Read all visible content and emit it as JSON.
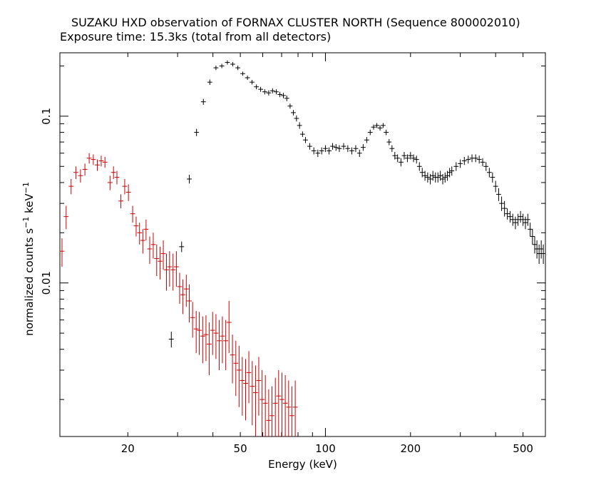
{
  "chart_data": {
    "type": "scatter",
    "title": "SUZAKU HXD observation of FORNAX CLUSTER NORTH (Sequence 800002010)",
    "subtitle": "Exposure time: 15.3ks (total from all detectors)",
    "xlabel": "Energy (keV)",
    "ylabel": "normalized counts s",
    "ylabel_sup1": "−1",
    "ylabel_mid": " keV",
    "ylabel_sup2": "−1",
    "x_scale": "log",
    "y_scale": "log",
    "xlim": [
      11.5,
      600
    ],
    "ylim": [
      0.0012,
      0.24
    ],
    "x_ticks": [
      20,
      50,
      100,
      200,
      500
    ],
    "x_tick_labels": [
      "20",
      "50",
      "100",
      "200",
      "500"
    ],
    "y_ticks": [
      0.01,
      0.1
    ],
    "y_tick_labels": [
      "0.01",
      "0.1"
    ],
    "grid": false,
    "series": [
      {
        "color": "#cc0000",
        "points": [
          [
            11.7,
            0.0155,
            0.003
          ],
          [
            12.1,
            0.025,
            0.004
          ],
          [
            12.6,
            0.038,
            0.004
          ],
          [
            13.1,
            0.046,
            0.004
          ],
          [
            13.6,
            0.044,
            0.004
          ],
          [
            14.1,
            0.048,
            0.004
          ],
          [
            14.6,
            0.056,
            0.004
          ],
          [
            15.1,
            0.055,
            0.004
          ],
          [
            15.6,
            0.051,
            0.004
          ],
          [
            16.1,
            0.054,
            0.004
          ],
          [
            16.6,
            0.053,
            0.004
          ],
          [
            17.3,
            0.04,
            0.004
          ],
          [
            17.8,
            0.046,
            0.004
          ],
          [
            18.3,
            0.043,
            0.004
          ],
          [
            18.9,
            0.031,
            0.003
          ],
          [
            19.5,
            0.038,
            0.004
          ],
          [
            20.1,
            0.035,
            0.004
          ],
          [
            20.8,
            0.026,
            0.003
          ],
          [
            21.4,
            0.022,
            0.003
          ],
          [
            22.0,
            0.02,
            0.003
          ],
          [
            22.6,
            0.018,
            0.003
          ],
          [
            23.2,
            0.021,
            0.003
          ],
          [
            23.9,
            0.016,
            0.003
          ],
          [
            24.6,
            0.017,
            0.003
          ],
          [
            25.3,
            0.014,
            0.003
          ],
          [
            26.0,
            0.0135,
            0.003
          ],
          [
            26.7,
            0.015,
            0.003
          ],
          [
            27.4,
            0.012,
            0.003
          ],
          [
            28.1,
            0.0125,
            0.003
          ],
          [
            28.9,
            0.012,
            0.003
          ],
          [
            29.7,
            0.0125,
            0.003
          ],
          [
            30.5,
            0.0095,
            0.002
          ],
          [
            31.3,
            0.0085,
            0.002
          ],
          [
            32.2,
            0.0092,
            0.002
          ],
          [
            33.0,
            0.0078,
            0.002
          ],
          [
            33.9,
            0.0062,
            0.0015
          ],
          [
            34.9,
            0.0053,
            0.0015
          ],
          [
            35.8,
            0.0052,
            0.0015
          ],
          [
            36.8,
            0.0048,
            0.0015
          ],
          [
            37.8,
            0.0049,
            0.0015
          ],
          [
            38.8,
            0.0043,
            0.0015
          ],
          [
            39.9,
            0.0052,
            0.0015
          ],
          [
            41.0,
            0.005,
            0.0015
          ],
          [
            42.1,
            0.0045,
            0.0015
          ],
          [
            43.2,
            0.0048,
            0.0015
          ],
          [
            44.4,
            0.0045,
            0.0015
          ],
          [
            45.6,
            0.0058,
            0.002
          ],
          [
            46.9,
            0.0037,
            0.0012
          ],
          [
            48.2,
            0.0033,
            0.0012
          ],
          [
            49.5,
            0.003,
            0.0012
          ],
          [
            50.8,
            0.0026,
            0.001
          ],
          [
            52.2,
            0.0025,
            0.001
          ],
          [
            53.6,
            0.0029,
            0.001
          ],
          [
            55.1,
            0.0024,
            0.001
          ],
          [
            56.6,
            0.0022,
            0.001
          ],
          [
            58.1,
            0.0026,
            0.001
          ],
          [
            59.7,
            0.002,
            0.001
          ],
          [
            61.3,
            0.0019,
            0.0009
          ],
          [
            63.0,
            0.0015,
            0.0008
          ],
          [
            64.7,
            0.0016,
            0.0008
          ],
          [
            66.5,
            0.0019,
            0.0008
          ],
          [
            68.3,
            0.0021,
            0.0009
          ],
          [
            70.2,
            0.002,
            0.0009
          ],
          [
            72.1,
            0.0019,
            0.0009
          ],
          [
            74.1,
            0.0018,
            0.0008
          ],
          [
            76.1,
            0.0016,
            0.0008
          ],
          [
            78.2,
            0.0018,
            0.0008
          ]
        ]
      },
      {
        "color": "#000000",
        "points": [
          [
            28.5,
            0.0046,
            0.0005
          ],
          [
            31.0,
            0.0165,
            0.0012
          ],
          [
            33.0,
            0.042,
            0.0025
          ],
          [
            35.0,
            0.08,
            0.004
          ],
          [
            37.0,
            0.122,
            0.005
          ],
          [
            39.0,
            0.16,
            0.006
          ],
          [
            41.0,
            0.195,
            0.006
          ],
          [
            43.0,
            0.2,
            0.006
          ],
          [
            45.0,
            0.21,
            0.006
          ],
          [
            47.0,
            0.205,
            0.006
          ],
          [
            49.0,
            0.195,
            0.006
          ],
          [
            51.0,
            0.18,
            0.005
          ],
          [
            53.0,
            0.17,
            0.005
          ],
          [
            55.0,
            0.16,
            0.005
          ],
          [
            57.0,
            0.15,
            0.005
          ],
          [
            59.0,
            0.145,
            0.005
          ],
          [
            61.0,
            0.14,
            0.005
          ],
          [
            63.0,
            0.138,
            0.005
          ],
          [
            65.0,
            0.142,
            0.005
          ],
          [
            67.0,
            0.14,
            0.005
          ],
          [
            69.0,
            0.135,
            0.005
          ],
          [
            71.0,
            0.133,
            0.005
          ],
          [
            73.0,
            0.128,
            0.005
          ],
          [
            75.0,
            0.115,
            0.004
          ],
          [
            77.0,
            0.105,
            0.004
          ],
          [
            79.0,
            0.097,
            0.004
          ],
          [
            81.0,
            0.088,
            0.004
          ],
          [
            83.0,
            0.078,
            0.003
          ],
          [
            85.0,
            0.072,
            0.003
          ],
          [
            88.0,
            0.066,
            0.003
          ],
          [
            91.0,
            0.062,
            0.003
          ],
          [
            94.0,
            0.06,
            0.003
          ],
          [
            97.0,
            0.062,
            0.003
          ],
          [
            100.0,
            0.064,
            0.003
          ],
          [
            103.0,
            0.062,
            0.003
          ],
          [
            106.0,
            0.066,
            0.003
          ],
          [
            109.0,
            0.065,
            0.003
          ],
          [
            112.0,
            0.064,
            0.003
          ],
          [
            116.0,
            0.066,
            0.003
          ],
          [
            120.0,
            0.064,
            0.003
          ],
          [
            124.0,
            0.062,
            0.003
          ],
          [
            128.0,
            0.064,
            0.003
          ],
          [
            132.0,
            0.06,
            0.003
          ],
          [
            136.0,
            0.065,
            0.003
          ],
          [
            140.0,
            0.072,
            0.003
          ],
          [
            144.0,
            0.08,
            0.003
          ],
          [
            148.0,
            0.086,
            0.003
          ],
          [
            152.0,
            0.088,
            0.003
          ],
          [
            156.0,
            0.085,
            0.003
          ],
          [
            160.0,
            0.088,
            0.003
          ],
          [
            164.0,
            0.08,
            0.003
          ],
          [
            168.0,
            0.07,
            0.003
          ],
          [
            172.0,
            0.064,
            0.003
          ],
          [
            176.0,
            0.058,
            0.003
          ],
          [
            180.0,
            0.056,
            0.003
          ],
          [
            185.0,
            0.053,
            0.003
          ],
          [
            190.0,
            0.058,
            0.003
          ],
          [
            195.0,
            0.056,
            0.003
          ],
          [
            200.0,
            0.058,
            0.003
          ],
          [
            205.0,
            0.056,
            0.003
          ],
          [
            210.0,
            0.055,
            0.003
          ],
          [
            215.0,
            0.05,
            0.003
          ],
          [
            220.0,
            0.046,
            0.003
          ],
          [
            225.0,
            0.044,
            0.003
          ],
          [
            230.0,
            0.043,
            0.003
          ],
          [
            235.0,
            0.042,
            0.003
          ],
          [
            240.0,
            0.044,
            0.003
          ],
          [
            245.0,
            0.043,
            0.003
          ],
          [
            250.0,
            0.043,
            0.003
          ],
          [
            255.0,
            0.044,
            0.003
          ],
          [
            260.0,
            0.042,
            0.003
          ],
          [
            265.0,
            0.043,
            0.003
          ],
          [
            270.0,
            0.044,
            0.003
          ],
          [
            275.0,
            0.046,
            0.003
          ],
          [
            280.0,
            0.047,
            0.003
          ],
          [
            290.0,
            0.05,
            0.003
          ],
          [
            300.0,
            0.052,
            0.003
          ],
          [
            310.0,
            0.054,
            0.003
          ],
          [
            320.0,
            0.055,
            0.003
          ],
          [
            330.0,
            0.056,
            0.003
          ],
          [
            340.0,
            0.056,
            0.003
          ],
          [
            350.0,
            0.055,
            0.003
          ],
          [
            360.0,
            0.053,
            0.003
          ],
          [
            370.0,
            0.05,
            0.003
          ],
          [
            380.0,
            0.046,
            0.003
          ],
          [
            390.0,
            0.043,
            0.003
          ],
          [
            400.0,
            0.038,
            0.003
          ],
          [
            410.0,
            0.034,
            0.003
          ],
          [
            420.0,
            0.03,
            0.003
          ],
          [
            430.0,
            0.028,
            0.003
          ],
          [
            440.0,
            0.026,
            0.002
          ],
          [
            450.0,
            0.025,
            0.002
          ],
          [
            460.0,
            0.024,
            0.002
          ],
          [
            470.0,
            0.023,
            0.002
          ],
          [
            480.0,
            0.024,
            0.002
          ],
          [
            490.0,
            0.025,
            0.002
          ],
          [
            500.0,
            0.024,
            0.002
          ],
          [
            510.0,
            0.023,
            0.002
          ],
          [
            520.0,
            0.024,
            0.002
          ],
          [
            530.0,
            0.021,
            0.002
          ],
          [
            540.0,
            0.019,
            0.002
          ],
          [
            550.0,
            0.017,
            0.002
          ],
          [
            560.0,
            0.016,
            0.002
          ],
          [
            570.0,
            0.015,
            0.002
          ],
          [
            580.0,
            0.016,
            0.002
          ],
          [
            590.0,
            0.015,
            0.002
          ]
        ]
      }
    ]
  }
}
